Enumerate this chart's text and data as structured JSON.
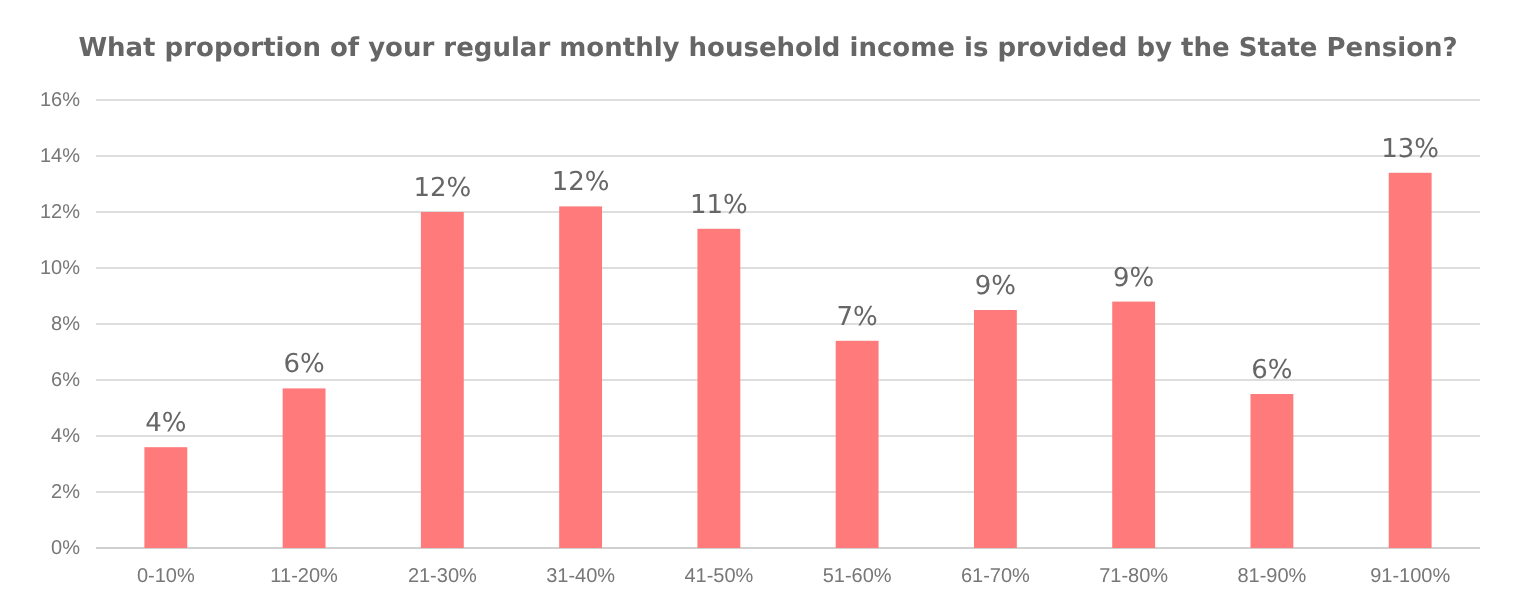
{
  "chart_data": {
    "type": "bar",
    "title": "What proportion of your regular monthly household income is provided by the State Pension?",
    "categories": [
      "0-10%",
      "11-20%",
      "21-30%",
      "31-40%",
      "41-50%",
      "51-60%",
      "61-70%",
      "71-80%",
      "81-90%",
      "91-100%"
    ],
    "values": [
      3.6,
      5.7,
      12.0,
      12.2,
      11.4,
      7.4,
      8.5,
      8.8,
      5.5,
      13.4
    ],
    "value_labels": [
      "4%",
      "6%",
      "12%",
      "12%",
      "11%",
      "7%",
      "9%",
      "9%",
      "6%",
      "13%"
    ],
    "color": "#ff7b7b",
    "ylim": [
      0,
      16
    ],
    "yticks": [
      {
        "value": 0,
        "label": "0%"
      },
      {
        "value": 2,
        "label": "2%"
      },
      {
        "value": 4,
        "label": "4%"
      },
      {
        "value": 6,
        "label": "6%"
      },
      {
        "value": 8,
        "label": "8%"
      },
      {
        "value": 10,
        "label": "10%"
      },
      {
        "value": 12,
        "label": "12%"
      },
      {
        "value": 14,
        "label": "14%"
      },
      {
        "value": 16,
        "label": "16%"
      }
    ],
    "grid": "y"
  }
}
